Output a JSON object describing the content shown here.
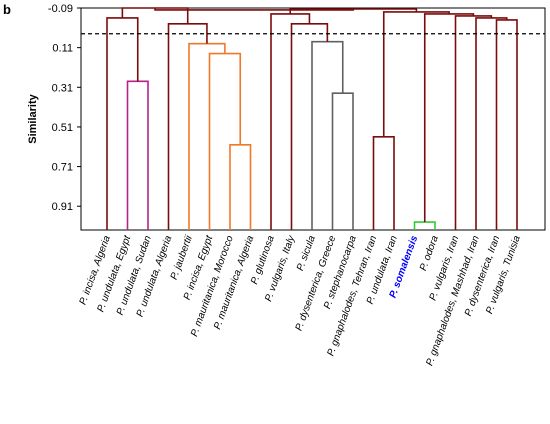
{
  "panel_label": "b",
  "chart_data": {
    "type": "dendrogram",
    "ylabel": "Similarity",
    "y_axis_inverted": true,
    "ylim": [
      -0.09,
      1.03
    ],
    "yticks": [
      -0.09,
      0.11,
      0.31,
      0.51,
      0.71,
      0.91
    ],
    "ytick_labels": [
      "-0.09",
      "0.11",
      "0.31",
      "0.51",
      "0.71",
      "0.91"
    ],
    "cut_line": {
      "similarity": 0.04,
      "style": "dashed"
    },
    "leaves": [
      {
        "label": "P. incisa, Algeria",
        "color": "#000000"
      },
      {
        "label": "P. undulata, Egypt",
        "color": "#000000"
      },
      {
        "label": "P. undulata, Sudan",
        "color": "#000000"
      },
      {
        "label": "P. undulata, Algeria",
        "color": "#000000"
      },
      {
        "label": "P. jaubertii",
        "color": "#000000"
      },
      {
        "label": "P. incisa, Egypt",
        "color": "#000000"
      },
      {
        "label": "P. mauritanica, Morocco",
        "color": "#000000"
      },
      {
        "label": "P. mauritanica, Algeria",
        "color": "#000000"
      },
      {
        "label": "P. glutinosa",
        "color": "#000000"
      },
      {
        "label": "P. vulgaris, Italy",
        "color": "#000000"
      },
      {
        "label": "P. sicula",
        "color": "#000000"
      },
      {
        "label": "P. dysenterica, Greece",
        "color": "#000000"
      },
      {
        "label": "P. stephanocarpa",
        "color": "#000000"
      },
      {
        "label": "P. gnaphalodes, Tehran, Iran",
        "color": "#000000"
      },
      {
        "label": "P. undulata, Iran",
        "color": "#000000"
      },
      {
        "label": "P. somalensis",
        "color": "#0000ff"
      },
      {
        "label": "P. odora",
        "color": "#000000"
      },
      {
        "label": "P. vulgaris, Iran",
        "color": "#000000"
      },
      {
        "label": "P. gnaphalodes, Mashhad, Iran",
        "color": "#000000"
      },
      {
        "label": "P. dysenterica, Iran",
        "color": "#000000"
      },
      {
        "label": "P. vulgaris, Tunisia",
        "color": "#000000"
      }
    ],
    "colors": {
      "dark_red": "#7b0c0c",
      "magenta": "#b5228a",
      "orange": "#f0782a",
      "gray": "#606060",
      "green": "#33cc33"
    },
    "merges": [
      {
        "id": "m1",
        "left": 1,
        "right": 2,
        "similarity": 0.28,
        "color": "magenta"
      },
      {
        "id": "m2",
        "left": 0,
        "right": "m1",
        "similarity": -0.04,
        "color": "dark_red"
      },
      {
        "id": "m3",
        "left": 6,
        "right": 7,
        "similarity": 0.6,
        "color": "orange"
      },
      {
        "id": "m4",
        "left": 5,
        "right": "m3",
        "similarity": 0.14,
        "color": "orange"
      },
      {
        "id": "m5",
        "left": 4,
        "right": "m4",
        "similarity": 0.09,
        "color": "orange"
      },
      {
        "id": "m6",
        "left": 3,
        "right": "m5",
        "similarity": -0.01,
        "color": "dark_red"
      },
      {
        "id": "m7",
        "left": "m2",
        "right": "m6",
        "similarity": -0.09,
        "color": "dark_red"
      },
      {
        "id": "m8",
        "left": 11,
        "right": 12,
        "similarity": 0.34,
        "color": "gray"
      },
      {
        "id": "m9",
        "left": 10,
        "right": "m8",
        "similarity": 0.08,
        "color": "gray"
      },
      {
        "id": "m10",
        "left": 9,
        "right": "m9",
        "similarity": -0.01,
        "color": "dark_red"
      },
      {
        "id": "m11",
        "left": 8,
        "right": "m10",
        "similarity": -0.06,
        "color": "dark_red"
      },
      {
        "id": "m12",
        "left": 13,
        "right": 14,
        "similarity": 0.56,
        "color": "dark_red"
      },
      {
        "id": "m13",
        "left": 15,
        "right": 16,
        "similarity": 0.99,
        "color": "green"
      },
      {
        "id": "m14",
        "left": 19,
        "right": 20,
        "similarity": -0.03,
        "color": "dark_red"
      },
      {
        "id": "m15",
        "left": 18,
        "right": "m14",
        "similarity": -0.04,
        "color": "dark_red"
      },
      {
        "id": "m16",
        "left": 17,
        "right": "m15",
        "similarity": -0.05,
        "color": "dark_red"
      },
      {
        "id": "m17",
        "left": "m13",
        "right": "m16",
        "similarity": -0.06,
        "color": "dark_red"
      },
      {
        "id": "m18",
        "left": "m12",
        "right": "m17",
        "similarity": -0.07,
        "color": "dark_red"
      },
      {
        "id": "m19",
        "left": "m11",
        "right": "m18",
        "similarity": -0.085,
        "color": "dark_red"
      },
      {
        "id": "m20",
        "left": "m7",
        "right": "m19",
        "similarity": -0.08,
        "color": "dark_red"
      }
    ]
  }
}
